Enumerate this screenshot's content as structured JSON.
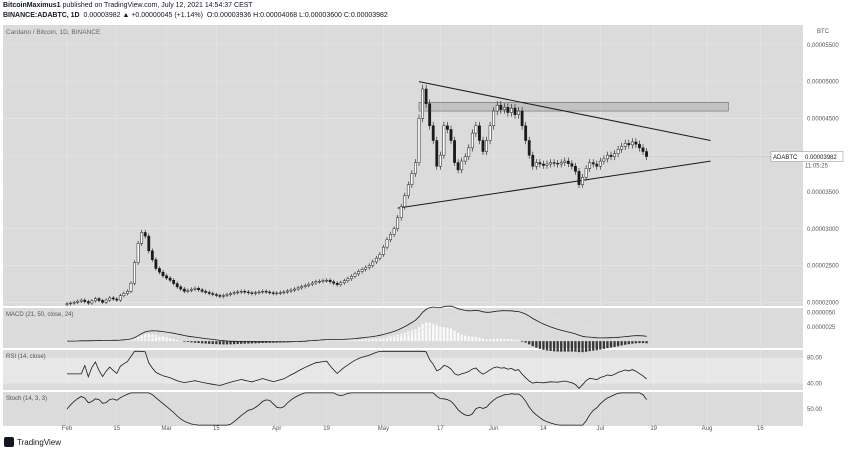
{
  "header": {
    "author": "BitcoinMaximus1",
    "published": "published on TradingView.com, July 12, 2021 14:54:37 CEST",
    "symbol": "BINANCE:ADABTC, 1D",
    "change": "0.00003982 ▲ +0.00000045 (+1.14%)",
    "ohlc": "O:0.00003936 H:0.00004068 L:0.00003600 C:0.00003982"
  },
  "footer": {
    "brand": "TradingView"
  },
  "colors": {
    "background": "#dbdbdb",
    "candle_up": "#ffffff",
    "candle_down": "#1a1a1a",
    "line": "#1a1a1a",
    "macd_line": "#1a1a1a",
    "signal_line": "#e0e0e0"
  },
  "chart_data": {
    "type": "candlestick",
    "title": "Cardano / Bitcoin, 1D, BINANCE",
    "y_unit_label": "BTC",
    "price_axis": {
      "ticks": [
        2e-05,
        2.5e-05,
        3e-05,
        3.5e-05,
        4e-05,
        4.5e-05,
        5e-05,
        5.5e-05
      ],
      "tick_labels": [
        "0.00002000",
        "0.00002500",
        "0.00003000",
        "0.00003500",
        "0.00004000",
        "0.00004500",
        "0.00005000",
        "0.00005500"
      ],
      "ylim": [
        1.95e-05,
        5.77e-05
      ]
    },
    "current_price": {
      "label": "ADABTC",
      "value": "0.00003982",
      "countdown": "11:05:25",
      "y": 3.982e-05
    },
    "x_axis": {
      "ticks": [
        {
          "day": 18,
          "label": "Feb"
        },
        {
          "day": 32,
          "label": "15"
        },
        {
          "day": 46,
          "label": "Mar"
        },
        {
          "day": 60,
          "label": "15"
        },
        {
          "day": 77,
          "label": "Apr"
        },
        {
          "day": 91,
          "label": "19"
        },
        {
          "day": 107,
          "label": "May"
        },
        {
          "day": 123,
          "label": "17"
        },
        {
          "day": 138,
          "label": "Jun"
        },
        {
          "day": 152,
          "label": "14"
        },
        {
          "day": 168,
          "label": "Jul"
        },
        {
          "day": 183,
          "label": "19"
        },
        {
          "day": 198,
          "label": "Aug"
        },
        {
          "day": 213,
          "label": "16"
        }
      ],
      "xlim": [
        0,
        225
      ]
    },
    "anchors": [
      [
        18,
        1.98e-05
      ],
      [
        20,
        2e-05
      ],
      [
        22,
        2.03e-05
      ],
      [
        24,
        1.99e-05
      ],
      [
        26,
        2.05e-05
      ],
      [
        28,
        2e-05
      ],
      [
        30,
        2.06e-05
      ],
      [
        32,
        2.03e-05
      ],
      [
        33,
        2.09e-05
      ],
      [
        35,
        2.15e-05
      ],
      [
        36,
        2.26e-05
      ],
      [
        37,
        2.54e-05
      ],
      [
        38,
        2.8e-05
      ],
      [
        39,
        2.95e-05
      ],
      [
        40,
        2.9e-05
      ],
      [
        41,
        2.7e-05
      ],
      [
        42,
        2.58e-05
      ],
      [
        43,
        2.46e-05
      ],
      [
        45,
        2.36e-05
      ],
      [
        47,
        2.3e-05
      ],
      [
        49,
        2.21e-05
      ],
      [
        51,
        2.15e-05
      ],
      [
        54,
        2.19e-05
      ],
      [
        56,
        2.15e-05
      ],
      [
        58,
        2.12e-05
      ],
      [
        61,
        2.08e-05
      ],
      [
        64,
        2.12e-05
      ],
      [
        67,
        2.15e-05
      ],
      [
        70,
        2.12e-05
      ],
      [
        73,
        2.15e-05
      ],
      [
        76,
        2.12e-05
      ],
      [
        79,
        2.14e-05
      ],
      [
        82,
        2.18e-05
      ],
      [
        85,
        2.23e-05
      ],
      [
        88,
        2.28e-05
      ],
      [
        91,
        2.3e-05
      ],
      [
        94,
        2.24e-05
      ],
      [
        97,
        2.32e-05
      ],
      [
        100,
        2.42e-05
      ],
      [
        103,
        2.5e-05
      ],
      [
        106,
        2.65e-05
      ],
      [
        108,
        2.85e-05
      ],
      [
        110,
        3e-05
      ],
      [
        112,
        3.3e-05
      ],
      [
        114,
        3.6e-05
      ],
      [
        116,
        3.9e-05
      ],
      [
        117,
        4.5e-05
      ],
      [
        118,
        4.9e-05
      ],
      [
        119,
        4.7e-05
      ],
      [
        120,
        4.4e-05
      ],
      [
        121,
        4.2e-05
      ],
      [
        122,
        3.85e-05
      ],
      [
        123,
        4e-05
      ],
      [
        124,
        4.4e-05
      ],
      [
        125,
        4.35e-05
      ],
      [
        126,
        4.2e-05
      ],
      [
        127,
        3.9e-05
      ],
      [
        128,
        3.8e-05
      ],
      [
        129,
        3.92e-05
      ],
      [
        130,
        3.98e-05
      ],
      [
        131,
        4.1e-05
      ],
      [
        132,
        4.3e-05
      ],
      [
        133,
        4.4e-05
      ],
      [
        134,
        4.2e-05
      ],
      [
        135,
        4.05e-05
      ],
      [
        136,
        4.2e-05
      ],
      [
        137,
        4.4e-05
      ],
      [
        138,
        4.6e-05
      ],
      [
        139,
        4.68e-05
      ],
      [
        140,
        4.62e-05
      ],
      [
        141,
        4.65e-05
      ],
      [
        142,
        4.58e-05
      ],
      [
        143,
        4.64e-05
      ],
      [
        144,
        4.55e-05
      ],
      [
        145,
        4.6e-05
      ],
      [
        146,
        4.4e-05
      ],
      [
        147,
        4.2e-05
      ],
      [
        148,
        4e-05
      ],
      [
        149,
        3.85e-05
      ],
      [
        150,
        3.9e-05
      ],
      [
        152,
        3.86e-05
      ],
      [
        154,
        3.9e-05
      ],
      [
        156,
        3.88e-05
      ],
      [
        158,
        3.92e-05
      ],
      [
        160,
        3.85e-05
      ],
      [
        161,
        3.78e-05
      ],
      [
        162,
        3.6e-05
      ],
      [
        163,
        3.7e-05
      ],
      [
        164,
        3.82e-05
      ],
      [
        165,
        3.9e-05
      ],
      [
        166,
        3.88e-05
      ],
      [
        167,
        3.85e-05
      ],
      [
        168,
        3.92e-05
      ],
      [
        169,
        3.95e-05
      ],
      [
        170,
        4e-05
      ],
      [
        171,
        3.98e-05
      ],
      [
        172,
        4.02e-05
      ],
      [
        173,
        4.08e-05
      ],
      [
        174,
        4.12e-05
      ],
      [
        175,
        4.16e-05
      ],
      [
        176,
        4.14e-05
      ],
      [
        177,
        4.18e-05
      ],
      [
        178,
        4.15e-05
      ],
      [
        179,
        4.1e-05
      ],
      [
        180,
        4.05e-05
      ],
      [
        181,
        3.98e-05
      ]
    ],
    "trendlines": [
      {
        "name": "upper",
        "points": [
          [
            117,
            5e-05
          ],
          [
            199,
            4.2e-05
          ]
        ]
      },
      {
        "name": "lower",
        "points": [
          [
            111,
            3.28e-05
          ],
          [
            199,
            3.92e-05
          ]
        ]
      }
    ],
    "resistance_zone": {
      "x": [
        117,
        204
      ],
      "y": [
        4.6e-05,
        4.72e-05
      ]
    },
    "macd": {
      "label": "MACD (21, 50, close, 24)",
      "ticks": [
        2.5e-06,
        5e-06
      ],
      "tick_labels": [
        "0.0000025",
        "0.0000050"
      ],
      "ylim": [
        -1.2e-06,
        5.8e-06
      ]
    },
    "rsi": {
      "label": "RSI (14, close)",
      "ticks": [
        40,
        80
      ],
      "tick_labels": [
        "40.00",
        "80.00"
      ],
      "ylim": [
        30,
        92
      ]
    },
    "stoch": {
      "label": "Stoch (14, 3, 3)",
      "ticks": [
        50
      ],
      "tick_labels": [
        "50.00"
      ],
      "ylim": [
        10,
        90
      ]
    }
  }
}
